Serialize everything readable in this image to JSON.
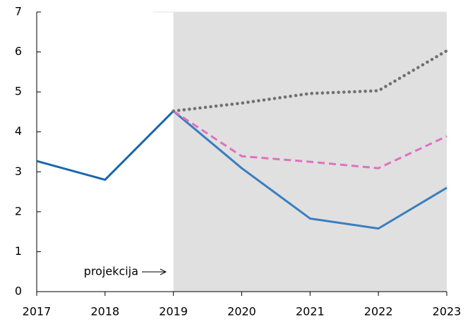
{
  "chart_data": {
    "type": "line",
    "categories": [
      "2017",
      "2018",
      "2019",
      "2020",
      "2021",
      "2022",
      "2023"
    ],
    "series": [
      {
        "color": "#1a66ad",
        "dash": "solid",
        "values": [
          3.27,
          2.8,
          4.52,
          null,
          null,
          null,
          null
        ]
      },
      {
        "color": "#3a7ebf",
        "dash": "solid",
        "values": [
          null,
          null,
          4.52,
          3.09,
          1.83,
          1.58,
          2.6
        ]
      },
      {
        "color": "#e070c0",
        "dash": "dashed",
        "values": [
          null,
          null,
          4.52,
          3.39,
          3.25,
          3.09,
          3.89
        ]
      },
      {
        "color": "#707070",
        "dash": "dotted",
        "values": [
          null,
          null,
          4.52,
          4.72,
          4.96,
          5.03,
          6.03
        ]
      }
    ],
    "ylim": [
      0,
      7
    ],
    "yticks": [
      0,
      1,
      2,
      3,
      4,
      5,
      6,
      7
    ],
    "shaded_range": [
      "2019",
      "2023"
    ],
    "shade_color": "#e0e0e0",
    "annotation": "projekcija"
  }
}
